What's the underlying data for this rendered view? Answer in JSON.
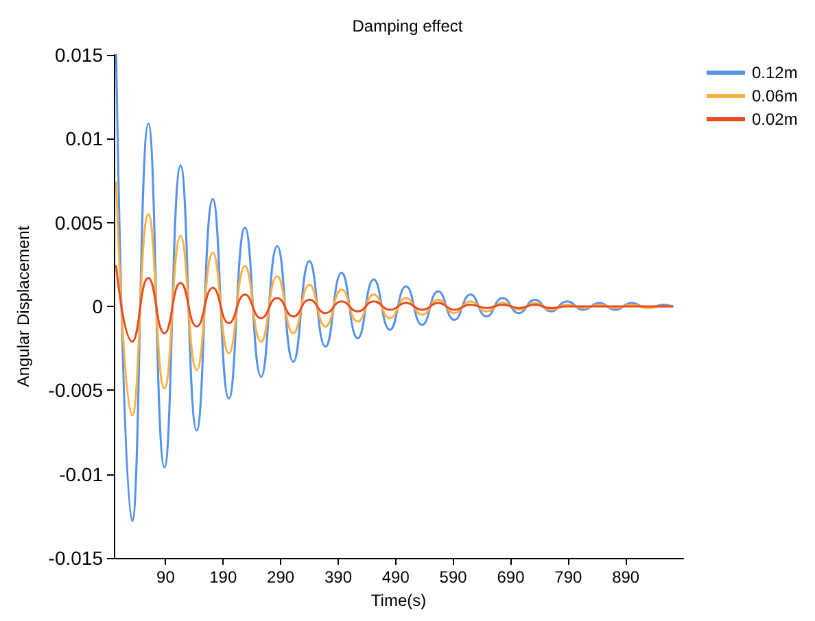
{
  "chart_data": {
    "type": "line",
    "title": "Damping effect",
    "xlabel": "Time(s)",
    "ylabel": "Angular Displacement",
    "x": [
      4,
      32,
      60,
      88,
      116,
      144,
      172,
      200,
      228,
      256,
      284,
      312,
      340,
      368,
      396,
      424,
      452,
      480,
      508,
      536,
      564,
      592,
      620,
      648,
      676,
      704,
      732,
      760,
      788,
      816,
      844,
      872,
      900,
      928,
      956,
      971
    ],
    "series": [
      {
        "name": "0.12m",
        "color": "#5592ee",
        "values": [
          0.015,
          -0.0128,
          0.0109,
          -0.0096,
          0.0084,
          -0.0074,
          0.0064,
          -0.0055,
          0.0047,
          -0.0042,
          0.0036,
          -0.0033,
          0.0027,
          -0.0024,
          0.002,
          -0.0019,
          0.0016,
          -0.0014,
          0.0012,
          -0.0011,
          0.0009,
          -0.0008,
          0.0007,
          -0.0006,
          0.0005,
          -0.0004,
          0.0004,
          -0.0003,
          0.0003,
          -0.0002,
          0.0002,
          -0.0002,
          0.0002,
          -0.0001,
          0.0001,
          0
        ]
      },
      {
        "name": "0.06m",
        "color": "#ffb040",
        "values": [
          0.0074,
          -0.0065,
          0.0055,
          -0.0049,
          0.0042,
          -0.0038,
          0.0032,
          -0.0028,
          0.0024,
          -0.0021,
          0.0018,
          -0.0016,
          0.0013,
          -0.0012,
          0.001,
          -0.0009,
          0.0007,
          -0.0007,
          0.0005,
          -0.0005,
          0.0004,
          -0.0004,
          0.0003,
          -0.0003,
          0.0002,
          -0.0002,
          0.0002,
          -0.0002,
          0.0001,
          -0.0001,
          0.0001,
          -0.0001,
          0.0001,
          -0.0001,
          0,
          0
        ]
      },
      {
        "name": "0.02m",
        "color": "#e54e22",
        "values": [
          0.0024,
          -0.0021,
          0.0017,
          -0.0016,
          0.0014,
          -0.0012,
          0.0011,
          -0.001,
          0.0007,
          -0.0007,
          0.0005,
          -0.0006,
          0.0004,
          -0.0004,
          0.0003,
          -0.0003,
          0.0003,
          -0.0002,
          0.0002,
          -0.0002,
          0.0002,
          -0.0002,
          0.0001,
          -0.0001,
          0.0001,
          -0.0001,
          0.0001,
          -0.0001,
          0,
          0,
          0,
          0,
          0,
          0,
          0,
          0
        ]
      }
    ],
    "xlim": [
      0,
      990
    ],
    "xticks": [
      90,
      190,
      290,
      390,
      490,
      590,
      690,
      790,
      890
    ],
    "ylim": [
      -0.015,
      0.015
    ],
    "yticks": [
      -0.015,
      -0.01,
      -0.005,
      0,
      0.005,
      0.01,
      0.015
    ],
    "grid": false,
    "legend": "top right",
    "marker": "none",
    "line_style": "solid"
  }
}
